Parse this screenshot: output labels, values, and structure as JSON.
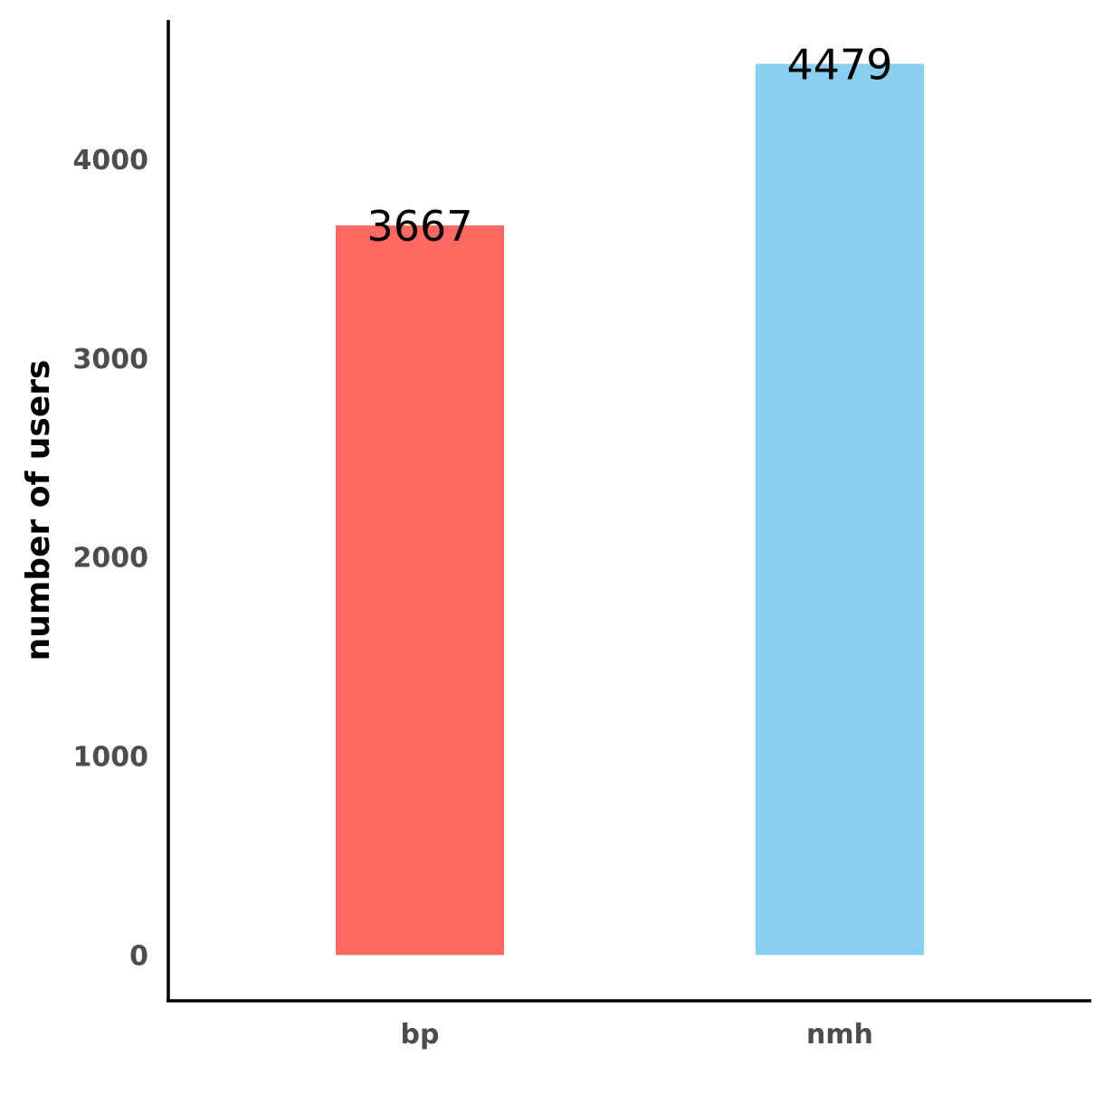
{
  "chart_data": {
    "type": "bar",
    "categories": [
      "bp",
      "nmh"
    ],
    "values": [
      3667,
      4479
    ],
    "data_labels": [
      "3667",
      "4479"
    ],
    "colors": [
      "#ff6961",
      "#89cfef"
    ],
    "title": "",
    "xlabel": "",
    "ylabel": "number of users",
    "ylim": [
      -230,
      4700
    ],
    "yticks": [
      0,
      1000,
      2000,
      3000,
      4000
    ],
    "ytick_labels": [
      "0",
      "1000",
      "2000",
      "3000",
      "4000"
    ],
    "grid": false,
    "legend": "none"
  }
}
